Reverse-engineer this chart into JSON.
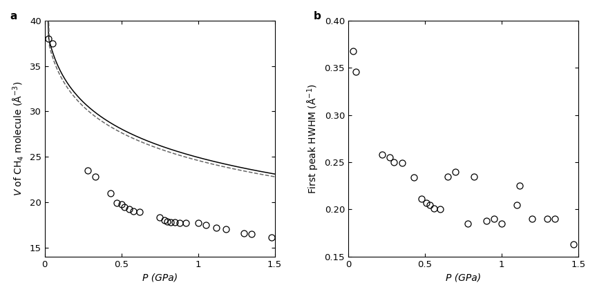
{
  "panel_a": {
    "label": "a",
    "xlabel": "P (GPa)",
    "ylabel_parts": [
      "V",
      " of CH₄ molecule (Å⁻³)"
    ],
    "xlim": [
      0.0,
      1.5
    ],
    "ylim": [
      14,
      40
    ],
    "yticks": [
      15,
      20,
      25,
      30,
      35,
      40
    ],
    "xticks": [
      0.0,
      0.5,
      1.0,
      1.5
    ],
    "exp_x": [
      0.025,
      0.05,
      0.28,
      0.33,
      0.43,
      0.47,
      0.5,
      0.52,
      0.55,
      0.58,
      0.62,
      0.75,
      0.78,
      0.8,
      0.82,
      0.85,
      0.88,
      0.92,
      1.0,
      1.05,
      1.12,
      1.18,
      1.3,
      1.35,
      1.48
    ],
    "exp_y": [
      38.0,
      37.5,
      23.5,
      22.8,
      21.0,
      19.9,
      19.8,
      19.5,
      19.2,
      19.0,
      18.9,
      18.3,
      18.0,
      17.9,
      17.8,
      17.8,
      17.7,
      17.7,
      17.7,
      17.5,
      17.2,
      17.0,
      16.6,
      16.5,
      16.1
    ],
    "solid_params": {
      "V0": 40.5,
      "K0": 0.32,
      "Kp": 9.0
    },
    "dashed_params": {
      "V0": 40.0,
      "K0": 0.3,
      "Kp": 9.5
    }
  },
  "panel_b": {
    "label": "b",
    "xlabel": "P (GPa)",
    "ylabel": "First peak HWHM (Å⁻¹)",
    "xlim": [
      0.0,
      1.5
    ],
    "ylim": [
      0.15,
      0.4
    ],
    "yticks": [
      0.15,
      0.2,
      0.25,
      0.3,
      0.35,
      0.4
    ],
    "xticks": [
      0.0,
      0.5,
      1.0,
      1.5
    ],
    "exp_x": [
      0.03,
      0.05,
      0.22,
      0.27,
      0.3,
      0.35,
      0.43,
      0.48,
      0.51,
      0.53,
      0.56,
      0.6,
      0.65,
      0.7,
      0.78,
      0.82,
      0.9,
      0.95,
      1.0,
      1.1,
      1.12,
      1.2,
      1.3,
      1.35,
      1.47
    ],
    "exp_y": [
      0.368,
      0.346,
      0.258,
      0.255,
      0.25,
      0.249,
      0.234,
      0.211,
      0.207,
      0.205,
      0.201,
      0.2,
      0.235,
      0.24,
      0.185,
      0.235,
      0.188,
      0.19,
      0.185,
      0.205,
      0.225,
      0.19,
      0.19,
      0.19,
      0.163
    ]
  },
  "marker_size": 6.5,
  "marker_color": "none",
  "marker_edgecolor": "#000000",
  "marker_linewidth": 0.9,
  "line_color_solid": "#000000",
  "line_color_dashed": "#666666",
  "line_width": 1.1,
  "background_color": "#ffffff",
  "panel_label_fontsize": 11,
  "axis_label_fontsize": 10,
  "tick_fontsize": 9.5
}
